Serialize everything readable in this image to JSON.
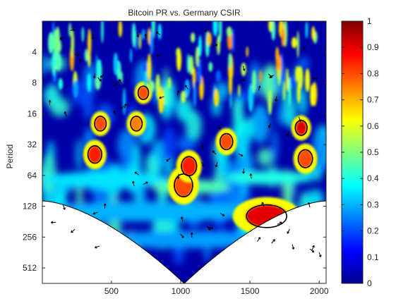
{
  "chart_data": {
    "type": "heatmap",
    "title": "Bitcoin PR vs. Germany CSIR",
    "xlabel": "",
    "ylabel": "Period",
    "x_ticks": [
      500,
      1000,
      1500,
      2000
    ],
    "y_ticks": [
      "4",
      "8",
      "16",
      "32",
      "64",
      "128",
      "256",
      "512"
    ],
    "y_scale": "log2",
    "xlim": [
      1,
      2050
    ],
    "ylim": [
      2,
      724
    ],
    "colorbar": {
      "ticks": [
        "0",
        "0.1",
        "0.2",
        "0.3",
        "0.4",
        "0.5",
        "0.6",
        "0.7",
        "0.8",
        "0.9",
        "1"
      ],
      "range": [
        0,
        1
      ]
    },
    "significant_regions": [
      {
        "x": 380,
        "period": 40,
        "coherence": 0.85
      },
      {
        "x": 420,
        "period": 20,
        "coherence": 0.8
      },
      {
        "x": 680,
        "period": 20,
        "coherence": 0.75
      },
      {
        "x": 730,
        "period": 10,
        "coherence": 0.8
      },
      {
        "x": 1020,
        "period": 80,
        "coherence": 0.8
      },
      {
        "x": 1060,
        "period": 52,
        "coherence": 0.85
      },
      {
        "x": 1330,
        "period": 30,
        "coherence": 0.8
      },
      {
        "x": 1620,
        "period": 160,
        "coherence": 0.9
      },
      {
        "x": 1870,
        "period": 22,
        "coherence": 0.9
      },
      {
        "x": 1900,
        "period": 44,
        "coherence": 0.8
      }
    ],
    "cone_of_influence": true,
    "phase_arrows": true
  }
}
